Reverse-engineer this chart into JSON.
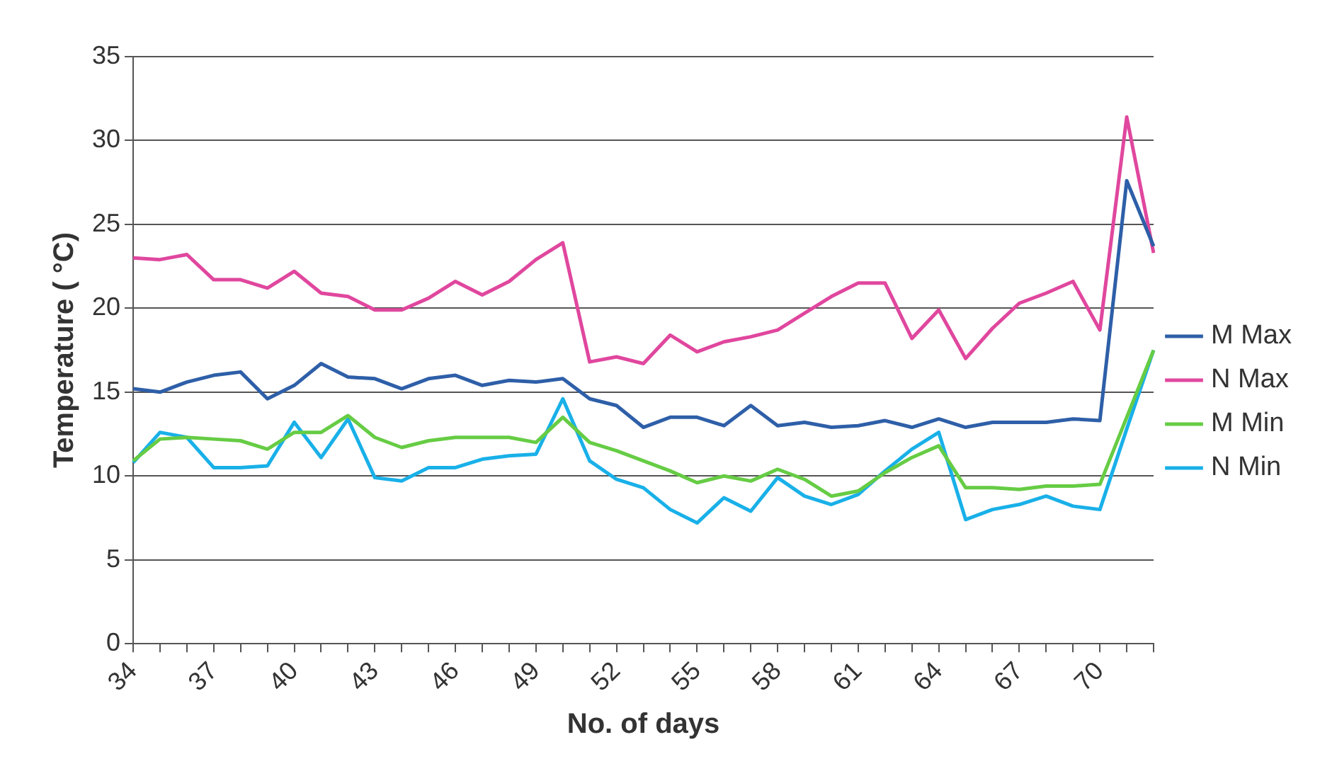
{
  "chart_data": {
    "type": "line",
    "xlabel": "No. of days",
    "ylabel": "Temperature ( °C)",
    "categories": [
      "34",
      null,
      null,
      "37",
      null,
      null,
      "40",
      null,
      null,
      "43",
      null,
      null,
      "46",
      null,
      null,
      "49",
      null,
      null,
      "52",
      null,
      null,
      "55",
      null,
      null,
      "58",
      null,
      null,
      "61",
      null,
      null,
      "64",
      null,
      null,
      "67",
      null,
      null,
      "70",
      null,
      null
    ],
    "ylim": [
      0,
      35
    ],
    "yticks": [
      0,
      5,
      10,
      15,
      20,
      25,
      30,
      35
    ],
    "grid": "y",
    "legend": "right",
    "marker": "none",
    "line_style": "solid",
    "series": [
      {
        "name": "M Max",
        "color": "#2e5fa8",
        "values": [
          15.2,
          15.0,
          15.6,
          16.0,
          16.2,
          14.6,
          15.4,
          16.7,
          15.9,
          15.8,
          15.2,
          15.8,
          16.0,
          15.4,
          15.7,
          15.6,
          15.8,
          14.6,
          14.2,
          12.9,
          13.5,
          13.5,
          13.0,
          14.2,
          13.0,
          13.2,
          12.9,
          13.0,
          13.3,
          12.9,
          13.4,
          12.9,
          13.2,
          13.2,
          13.2,
          13.4,
          13.3,
          27.6,
          23.7
        ]
      },
      {
        "name": "N Max",
        "color": "#e0479e",
        "values": [
          23.0,
          22.9,
          23.2,
          21.7,
          21.7,
          21.2,
          22.2,
          20.9,
          20.7,
          19.9,
          19.9,
          20.6,
          21.6,
          20.8,
          21.6,
          22.9,
          23.9,
          16.8,
          17.1,
          16.7,
          18.4,
          17.4,
          18.0,
          18.3,
          18.7,
          19.7,
          20.7,
          21.5,
          21.5,
          18.2,
          19.9,
          17.0,
          18.8,
          20.3,
          20.9,
          21.6,
          18.7,
          31.4,
          23.3
        ]
      },
      {
        "name": "M Min",
        "color": "#66cc44",
        "values": [
          10.9,
          12.2,
          12.3,
          12.2,
          12.1,
          11.6,
          12.6,
          12.6,
          13.6,
          12.3,
          11.7,
          12.1,
          12.3,
          12.3,
          12.3,
          12.0,
          13.5,
          12.0,
          11.5,
          10.9,
          10.3,
          9.6,
          10.0,
          9.7,
          10.4,
          9.8,
          8.8,
          9.1,
          10.2,
          11.1,
          11.8,
          9.3,
          9.3,
          9.2,
          9.4,
          9.4,
          9.5,
          13.5,
          17.5
        ]
      },
      {
        "name": "N Min",
        "color": "#19b0e8",
        "values": [
          10.8,
          12.6,
          12.3,
          10.5,
          10.5,
          10.6,
          13.2,
          11.1,
          13.4,
          9.9,
          9.7,
          10.5,
          10.5,
          11.0,
          11.2,
          11.3,
          14.6,
          10.9,
          9.8,
          9.3,
          8.0,
          7.2,
          8.7,
          7.9,
          9.9,
          8.8,
          8.3,
          8.9,
          10.3,
          11.6,
          12.6,
          7.4,
          8.0,
          8.3,
          8.8,
          8.2,
          8.0,
          12.8,
          17.5
        ]
      }
    ]
  }
}
